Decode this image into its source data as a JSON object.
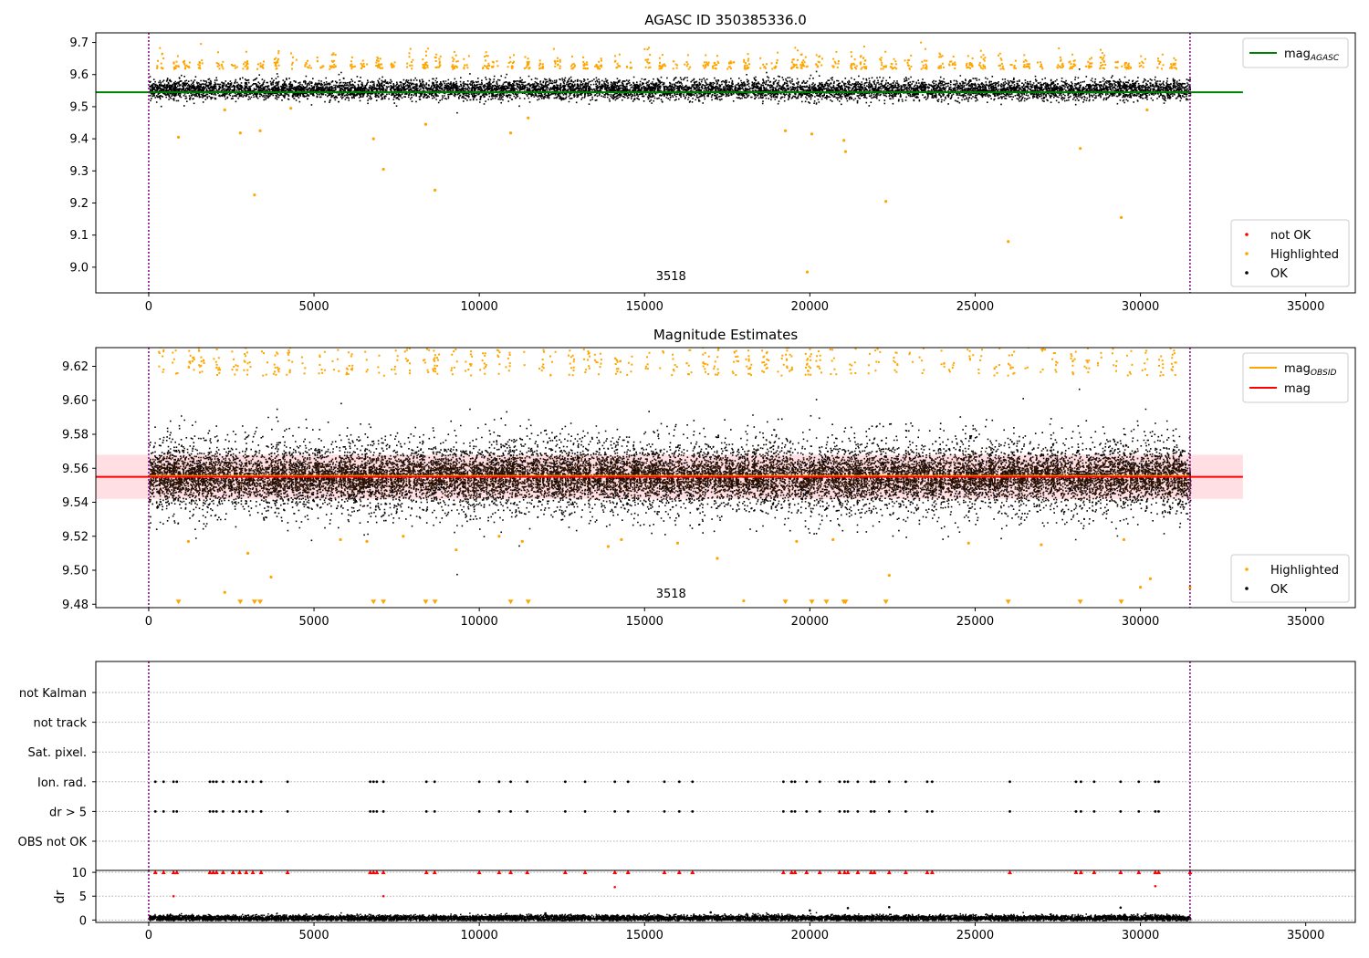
{
  "chart_data": [
    {
      "type": "scatter",
      "title": "AGASC ID 350385336.0",
      "xlim": [
        -1600,
        36500
      ],
      "ylim": [
        8.92,
        9.73
      ],
      "xticks": [
        0,
        5000,
        10000,
        15000,
        20000,
        25000,
        30000,
        35000
      ],
      "xtick_labels": [
        "0",
        "5000",
        "10000",
        "15000",
        "20000",
        "25000",
        "30000",
        "35000"
      ],
      "yticks": [
        9.0,
        9.1,
        9.2,
        9.3,
        9.4,
        9.5,
        9.6,
        9.7
      ],
      "ytick_labels": [
        "9.0",
        "9.1",
        "9.2",
        "9.3",
        "9.4",
        "9.5",
        "9.6",
        "9.7"
      ],
      "annotation": "3518",
      "annotation_pos": [
        15800,
        8.96
      ],
      "obs_bounds": [
        0,
        31500
      ],
      "bound_color": "#800080",
      "hlines": [
        {
          "name": "mag_AGASC",
          "y": 9.545,
          "x": [
            -1600,
            33100
          ],
          "color": "#008000"
        }
      ],
      "band": null,
      "legend_top": [
        {
          "kind": "line",
          "label": "mag",
          "sub": "AGASC",
          "color": "#008000"
        }
      ],
      "legend_bottom": [
        {
          "label": "not OK",
          "color": "#ff0000"
        },
        {
          "label": "Highlighted",
          "color": "#ffa500"
        },
        {
          "label": "OK",
          "color": "#000000"
        }
      ],
      "series": [
        {
          "name": "OK",
          "color": "#000000",
          "x_range": [
            0,
            31500
          ],
          "density": "dense",
          "y_center": 9.555,
          "y_spread": 0.015
        },
        {
          "name": "Highlighted",
          "color": "#ffa500",
          "kind": "clusters",
          "y_center": 9.62,
          "y_spread": 0.025
        },
        {
          "name": "Highlighted",
          "color": "#ffa500",
          "kind": "points",
          "x": [
            900,
            2770,
            3200,
            3370,
            6800,
            7100,
            8380,
            8660,
            10950,
            11480,
            19260,
            20060,
            21030,
            21080,
            22300,
            28180,
            29420,
            26000,
            19920,
            4300,
            2300,
            30200
          ],
          "y": [
            9.405,
            9.418,
            9.225,
            9.425,
            9.4,
            9.305,
            9.445,
            9.24,
            9.418,
            9.465,
            9.425,
            9.415,
            9.395,
            9.36,
            9.205,
            9.37,
            9.155,
            9.08,
            8.985,
            9.495,
            9.49,
            9.49
          ]
        }
      ]
    },
    {
      "type": "scatter",
      "title": "Magnitude Estimates",
      "xlim": [
        -1600,
        36500
      ],
      "ylim": [
        9.478,
        9.631
      ],
      "xticks": [
        0,
        5000,
        10000,
        15000,
        20000,
        25000,
        30000,
        35000
      ],
      "xtick_labels": [
        "0",
        "5000",
        "10000",
        "15000",
        "20000",
        "25000",
        "30000",
        "35000"
      ],
      "yticks": [
        9.48,
        9.5,
        9.52,
        9.54,
        9.56,
        9.58,
        9.6,
        9.62
      ],
      "ytick_labels": [
        "9.48",
        "9.50",
        "9.52",
        "9.54",
        "9.56",
        "9.58",
        "9.60",
        "9.62"
      ],
      "annotation": "3518",
      "annotation_pos": [
        15800,
        9.484
      ],
      "obs_bounds": [
        0,
        31500
      ],
      "bound_color": "#800080",
      "hlines": [
        {
          "name": "mag_OBSID",
          "y": 9.5555,
          "x": [
            0,
            31500
          ],
          "color": "#ffa500"
        },
        {
          "name": "mag",
          "y": 9.555,
          "x": [
            -1600,
            33100
          ],
          "color": "#ff0000"
        }
      ],
      "band": {
        "y": [
          9.542,
          9.568
        ],
        "x": [
          -1600,
          33100
        ],
        "color": "#ffc0c8"
      },
      "legend_top": [
        {
          "kind": "line",
          "label": "mag",
          "sub": "OBSID",
          "color": "#ffa500"
        },
        {
          "kind": "line",
          "label": "mag",
          "sub": "",
          "color": "#ff0000"
        }
      ],
      "legend_bottom": [
        {
          "label": "Highlighted",
          "color": "#ffa500"
        },
        {
          "label": "OK",
          "color": "#000000"
        }
      ],
      "series": [
        {
          "name": "OK",
          "color": "#000000",
          "x_range": [
            0,
            31500
          ],
          "density": "dense",
          "y_center": 9.5555,
          "y_spread": 0.012
        },
        {
          "name": "Highlighted",
          "color": "#ffa500",
          "kind": "clusters",
          "y_center": 9.615,
          "y_spread": 0.02
        },
        {
          "name": "Highlighted",
          "color": "#ffa500",
          "kind": "points",
          "x": [
            1200,
            2300,
            3000,
            3700,
            5800,
            6600,
            7700,
            9300,
            10600,
            11300,
            13900,
            14300,
            16000,
            17200,
            19600,
            20700,
            22400,
            24800,
            27000,
            29500,
            30000,
            30300,
            31500,
            18000
          ],
          "y": [
            9.517,
            9.487,
            9.51,
            9.496,
            9.518,
            9.517,
            9.52,
            9.512,
            9.52,
            9.517,
            9.514,
            9.518,
            9.516,
            9.507,
            9.517,
            9.518,
            9.497,
            9.516,
            9.515,
            9.518,
            9.49,
            9.495,
            9.49,
            9.482
          ]
        },
        {
          "name": "Highlighted (clipped low)",
          "color": "#ffa500",
          "kind": "triangles_down",
          "x": [
            900,
            2770,
            3200,
            3370,
            6800,
            7100,
            8380,
            8660,
            10950,
            11480,
            19260,
            20060,
            20500,
            21030,
            21080,
            22300,
            26000,
            28180,
            29420
          ],
          "y": [
            9.48,
            9.48,
            9.48,
            9.48,
            9.48,
            9.48,
            9.48,
            9.48,
            9.48,
            9.48,
            9.48,
            9.48,
            9.48,
            9.48,
            9.48,
            9.48,
            9.48,
            9.48,
            9.48
          ]
        }
      ]
    },
    {
      "type": "scatter",
      "title": "",
      "categories": [
        "not Kalman",
        "not track",
        "Sat. pixel.",
        "Ion. rad.",
        "dr > 5",
        "OBS not OK"
      ],
      "xlim": [
        -1600,
        36500
      ],
      "flag_rows": [
        {
          "label": "Ion. rad.",
          "x": [
            200,
            450,
            750,
            850,
            1850,
            1950,
            2050,
            2250,
            2550,
            2750,
            2950,
            3150,
            3400,
            4200,
            6700,
            6800,
            6900,
            7100,
            8400,
            8650,
            10000,
            10600,
            10950,
            11450,
            12600,
            13200,
            14100,
            14500,
            15600,
            16050,
            16450,
            19200,
            19450,
            19550,
            19900,
            20300,
            20900,
            21050,
            21150,
            21450,
            21850,
            21950,
            22400,
            22900,
            23550,
            23700,
            26050,
            28050,
            28200,
            28600,
            29400,
            29950,
            30450,
            30550
          ]
        },
        {
          "label": "dr > 5",
          "x": [
            200,
            450,
            750,
            850,
            1850,
            1950,
            2050,
            2250,
            2550,
            2750,
            2950,
            3150,
            3400,
            4200,
            6700,
            6800,
            6900,
            7100,
            8400,
            8650,
            10000,
            10600,
            10950,
            11450,
            12600,
            13200,
            14100,
            14500,
            15600,
            16050,
            16450,
            19200,
            19450,
            19550,
            19900,
            20300,
            20900,
            21050,
            21150,
            21450,
            21850,
            21950,
            22400,
            22900,
            23550,
            23700,
            26050,
            28050,
            28200,
            28600,
            29400,
            29950,
            30450,
            30550
          ]
        }
      ],
      "obs_bounds": [
        0,
        31500
      ],
      "bound_color": "#800080"
    },
    {
      "type": "scatter",
      "title": "",
      "ylabel": "dr",
      "xlim": [
        -1600,
        36500
      ],
      "ylim": [
        -0.5,
        10.4
      ],
      "yticks": [
        0,
        5,
        10
      ],
      "ytick_labels": [
        "0",
        "5",
        "10"
      ],
      "xticks": [
        0,
        5000,
        10000,
        15000,
        20000,
        25000,
        30000,
        35000
      ],
      "xtick_labels": [
        "0",
        "5000",
        "10000",
        "15000",
        "20000",
        "25000",
        "30000",
        "35000"
      ],
      "obs_bounds": [
        0,
        31500
      ],
      "bound_color": "#800080",
      "series": [
        {
          "name": "OK",
          "color": "#000000",
          "x_range": [
            0,
            31500
          ],
          "density": "dense",
          "y_center": 0.55,
          "y_spread": 0.3
        },
        {
          "name": "not OK (clipped)",
          "color": "#ff0000",
          "kind": "triangles_up",
          "x": [
            200,
            450,
            750,
            850,
            1850,
            1950,
            2050,
            2250,
            2550,
            2750,
            2950,
            3150,
            3400,
            4200,
            6700,
            6800,
            6900,
            7100,
            8400,
            8650,
            10000,
            10600,
            10950,
            11450,
            12600,
            13200,
            14100,
            14500,
            15600,
            16050,
            16450,
            19200,
            19450,
            19550,
            19900,
            20300,
            20900,
            21050,
            21150,
            21450,
            21850,
            21950,
            22400,
            22900,
            23550,
            23700,
            26050,
            28050,
            28200,
            28600,
            29400,
            29950,
            30450,
            30550,
            31500
          ],
          "y": [
            10,
            10,
            10,
            10,
            10,
            10,
            10,
            10,
            10,
            10,
            10,
            10,
            10,
            10,
            10,
            10,
            10,
            10,
            10,
            10,
            10,
            10,
            10,
            10,
            10,
            10,
            10,
            10,
            10,
            10,
            10,
            10,
            10,
            10,
            10,
            10,
            10,
            10,
            10,
            10,
            10,
            10,
            10,
            10,
            10,
            10,
            10,
            10,
            10,
            10,
            10,
            10,
            10,
            10,
            10
          ]
        },
        {
          "name": "not OK",
          "color": "#ff0000",
          "kind": "points",
          "x": [
            750,
            7100,
            14100,
            30450
          ],
          "y": [
            5.0,
            5.0,
            6.9,
            7.1
          ]
        },
        {
          "name": "OK outliers",
          "color": "#000000",
          "kind": "points",
          "x": [
            21150,
            22400,
            29400,
            20000,
            17000,
            12000
          ],
          "y": [
            2.5,
            2.7,
            2.6,
            2.0,
            1.6,
            1.4
          ]
        }
      ]
    }
  ]
}
